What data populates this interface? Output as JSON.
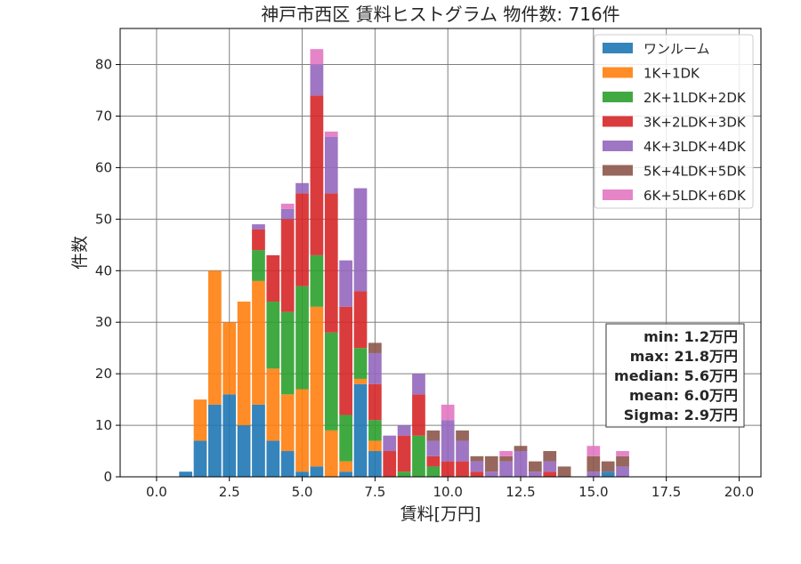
{
  "chart_data": {
    "type": "bar",
    "stacked": true,
    "title": "神戸市西区 賃料ヒストグラム 物件数: 716件",
    "xlabel": "賃料[万円]",
    "ylabel": "件数",
    "xlim": [
      -1.25,
      20.75
    ],
    "ylim": [
      0,
      87
    ],
    "xticks": [
      0.0,
      2.5,
      5.0,
      7.5,
      10.0,
      12.5,
      15.0,
      17.5,
      20.0
    ],
    "xtick_labels": [
      "0.0",
      "2.5",
      "5.0",
      "7.5",
      "10.0",
      "12.5",
      "15.0",
      "17.5",
      "20.0"
    ],
    "yticks": [
      0,
      10,
      20,
      30,
      40,
      50,
      60,
      70,
      80
    ],
    "ytick_labels": [
      "0",
      "10",
      "20",
      "30",
      "40",
      "50",
      "60",
      "70",
      "80"
    ],
    "grid": true,
    "legend_position": "top-right",
    "bin_width": 0.5,
    "bins": [
      1.0,
      1.5,
      2.0,
      2.5,
      3.0,
      3.5,
      4.0,
      4.5,
      5.0,
      5.5,
      6.0,
      6.5,
      7.0,
      7.5,
      8.0,
      8.5,
      9.0,
      9.5,
      10.0,
      10.5,
      11.0,
      11.5,
      12.0,
      12.5,
      13.0,
      13.5,
      14.0,
      14.5,
      15.0,
      15.5,
      16.0
    ],
    "series": [
      {
        "name": "ワンルーム",
        "color": "#1f77b4",
        "values": [
          1,
          7,
          14,
          16,
          10,
          14,
          7,
          5,
          1,
          2,
          0,
          1,
          18,
          5,
          0,
          0,
          0,
          0,
          0,
          0,
          0,
          0,
          0,
          0,
          0,
          0,
          0,
          0,
          0,
          1,
          0
        ]
      },
      {
        "name": "1K+1DK",
        "color": "#ff7f0e",
        "values": [
          0,
          8,
          26,
          14,
          24,
          24,
          14,
          11,
          16,
          31,
          9,
          2,
          1,
          2,
          0,
          0,
          0,
          0,
          0,
          0,
          0,
          0,
          0,
          0,
          0,
          0,
          0,
          0,
          0,
          0,
          0
        ]
      },
      {
        "name": "2K+1LDK+2DK",
        "color": "#2ca02c",
        "values": [
          0,
          0,
          0,
          0,
          0,
          6,
          13,
          16,
          20,
          10,
          19,
          9,
          6,
          4,
          0,
          1,
          8,
          2,
          0,
          0,
          0,
          0,
          0,
          0,
          0,
          0,
          0,
          0,
          0,
          0,
          0
        ]
      },
      {
        "name": "3K+2LDK+3DK",
        "color": "#d62728",
        "values": [
          0,
          0,
          0,
          0,
          0,
          4,
          9,
          18,
          18,
          31,
          27,
          21,
          11,
          7,
          5,
          7,
          8,
          2,
          3,
          3,
          1,
          0,
          0,
          0,
          0,
          1,
          0,
          0,
          0,
          0,
          0
        ]
      },
      {
        "name": "4K+3LDK+4DK",
        "color": "#9467bd",
        "values": [
          0,
          0,
          0,
          0,
          0,
          1,
          0,
          2,
          2,
          6,
          11,
          9,
          20,
          6,
          3,
          2,
          4,
          3,
          8,
          4,
          2,
          1,
          3,
          5,
          1,
          2,
          0,
          0,
          1,
          0,
          2
        ]
      },
      {
        "name": "5K+4LDK+5DK",
        "color": "#8c564b",
        "values": [
          0,
          0,
          0,
          0,
          0,
          0,
          0,
          0,
          0,
          0,
          0,
          0,
          0,
          2,
          0,
          0,
          0,
          2,
          0,
          2,
          1,
          3,
          1,
          1,
          2,
          2,
          2,
          0,
          3,
          2,
          2
        ]
      },
      {
        "name": "6K+5LDK+6DK",
        "color": "#e377c2",
        "values": [
          0,
          0,
          0,
          0,
          0,
          0,
          0,
          1,
          0,
          3,
          1,
          0,
          0,
          0,
          0,
          0,
          0,
          0,
          3,
          0,
          0,
          0,
          1,
          0,
          0,
          0,
          0,
          0,
          2,
          0,
          1
        ]
      }
    ],
    "stats": {
      "min": "min: 1.2万円",
      "max": "max: 21.8万円",
      "median": "median: 5.6万円",
      "mean": "mean: 6.0万円",
      "sigma": "Sigma: 2.9万円"
    }
  }
}
